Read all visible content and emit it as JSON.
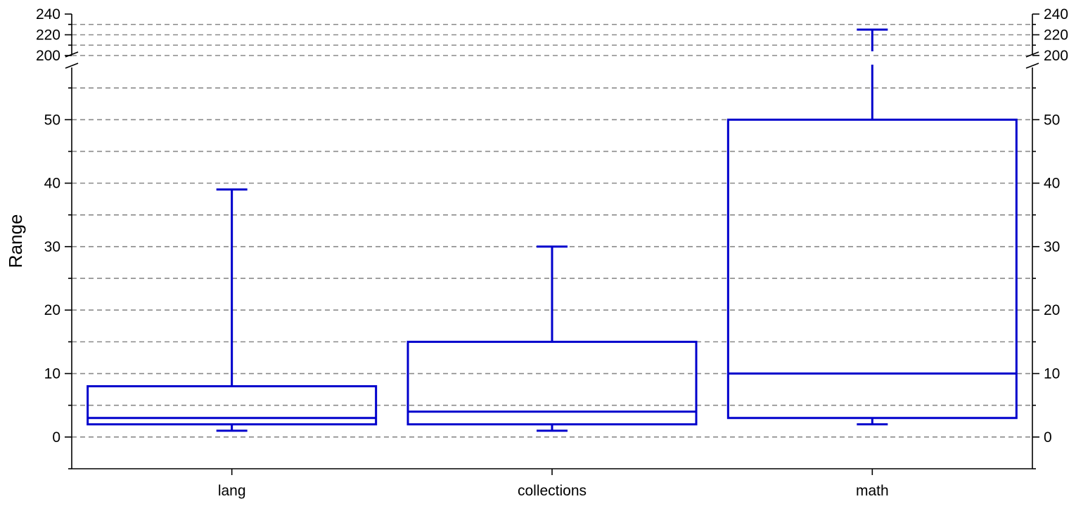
{
  "chart_data": {
    "type": "box",
    "ylabel": "Range",
    "xlabel": "",
    "categories": [
      "lang",
      "collections",
      "math"
    ],
    "boxes": [
      {
        "category": "lang",
        "min": 1,
        "q1": 2,
        "median": 3,
        "q3": 8,
        "max": 39
      },
      {
        "category": "collections",
        "min": 1,
        "q1": 2,
        "median": 4,
        "q3": 15,
        "max": 30
      },
      {
        "category": "math",
        "min": 2,
        "q1": 3,
        "median": 10,
        "q3": 50,
        "max": 225
      }
    ],
    "y_axis": {
      "broken": true,
      "lower_segment": {
        "range": [
          -5,
          60
        ],
        "major_ticks": [
          0,
          10,
          20,
          30,
          40,
          50
        ],
        "tick_labels": [
          "0",
          "10",
          "20",
          "30",
          "40",
          "50"
        ],
        "minor_ticks": [
          -5,
          5,
          15,
          25,
          35,
          45,
          55
        ]
      },
      "upper_segment": {
        "range": [
          200,
          240
        ],
        "major_ticks": [
          200,
          220,
          240
        ],
        "tick_labels": [
          "200",
          "220",
          "240"
        ],
        "minor_ticks": [
          210,
          230
        ]
      }
    },
    "gridlines": {
      "style": "dashed",
      "values": [
        0,
        5,
        10,
        15,
        20,
        25,
        30,
        35,
        40,
        45,
        50,
        55,
        200,
        210,
        220,
        230
      ]
    },
    "right_axis_mirrors_left": true,
    "grid": true,
    "colors": {
      "box": "#0000cc",
      "grid": "#8a8a8a",
      "axis": "#000000"
    }
  }
}
